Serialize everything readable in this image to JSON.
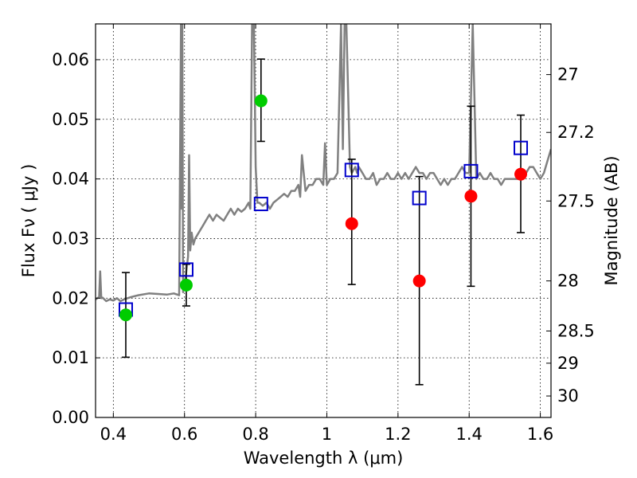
{
  "chart_data": {
    "type": "scatter",
    "xlabel": "Wavelength  λ (μm)",
    "ylabel": "Flux  Fν  ( μJy )",
    "y2label": "Magnitude (AB)",
    "xlim": [
      0.35,
      1.63
    ],
    "ylim": [
      0.0,
      0.066
    ],
    "grid": true,
    "x_ticks": [
      0.4,
      0.6,
      0.8,
      1.0,
      1.2,
      1.4,
      1.6
    ],
    "x_tick_labels": [
      "0.4",
      "0.6",
      "0.8",
      "1",
      "1.2",
      "1.4",
      "1.6"
    ],
    "y_ticks": [
      0.0,
      0.01,
      0.02,
      0.03,
      0.04,
      0.05,
      0.06
    ],
    "y_tick_labels": [
      "0.00",
      "0.01",
      "0.02",
      "0.03",
      "0.04",
      "0.05",
      "0.06"
    ],
    "y2_ticks": [
      {
        "label": "27",
        "flux": 0.0575
      },
      {
        "label": "27.2",
        "flux": 0.0478
      },
      {
        "label": "27.5",
        "flux": 0.0363
      },
      {
        "label": "28",
        "flux": 0.0229
      },
      {
        "label": "28.5",
        "flux": 0.0145
      },
      {
        "label": "29",
        "flux": 0.0091
      },
      {
        "label": "30",
        "flux": 0.0036
      }
    ],
    "model_spectrum": {
      "color": "#808080",
      "x": [
        0.35,
        0.36,
        0.363,
        0.366,
        0.37,
        0.38,
        0.39,
        0.4,
        0.41,
        0.42,
        0.43,
        0.45,
        0.47,
        0.5,
        0.53,
        0.55,
        0.57,
        0.585,
        0.59,
        0.592,
        0.594,
        0.596,
        0.6,
        0.605,
        0.61,
        0.613,
        0.616,
        0.62,
        0.625,
        0.63,
        0.64,
        0.65,
        0.66,
        0.67,
        0.68,
        0.69,
        0.7,
        0.71,
        0.72,
        0.73,
        0.74,
        0.75,
        0.76,
        0.77,
        0.78,
        0.785,
        0.79,
        0.795,
        0.8,
        0.805,
        0.81,
        0.82,
        0.83,
        0.84,
        0.85,
        0.86,
        0.87,
        0.88,
        0.89,
        0.9,
        0.91,
        0.92,
        0.925,
        0.93,
        0.94,
        0.95,
        0.96,
        0.97,
        0.98,
        0.99,
        0.995,
        1.0,
        1.01,
        1.02,
        1.03,
        1.04,
        1.045,
        1.05,
        1.055,
        1.06,
        1.065,
        1.07,
        1.08,
        1.085,
        1.09,
        1.1,
        1.11,
        1.12,
        1.13,
        1.14,
        1.15,
        1.16,
        1.17,
        1.18,
        1.19,
        1.2,
        1.21,
        1.22,
        1.23,
        1.24,
        1.25,
        1.26,
        1.27,
        1.28,
        1.29,
        1.3,
        1.31,
        1.32,
        1.33,
        1.34,
        1.35,
        1.36,
        1.37,
        1.38,
        1.39,
        1.4,
        1.41,
        1.42,
        1.43,
        1.44,
        1.45,
        1.46,
        1.47,
        1.48,
        1.49,
        1.5,
        1.51,
        1.52,
        1.53,
        1.54,
        1.55,
        1.56,
        1.57,
        1.58,
        1.59,
        1.6,
        1.61,
        1.62,
        1.63
      ],
      "y": [
        0.0198,
        0.0202,
        0.0245,
        0.02,
        0.0201,
        0.0195,
        0.0198,
        0.0196,
        0.02,
        0.0195,
        0.0198,
        0.0202,
        0.0205,
        0.0208,
        0.0207,
        0.0206,
        0.0208,
        0.0205,
        0.066,
        0.035,
        0.066,
        0.021,
        0.022,
        0.0245,
        0.027,
        0.044,
        0.028,
        0.031,
        0.029,
        0.03,
        0.031,
        0.032,
        0.033,
        0.034,
        0.033,
        0.034,
        0.0335,
        0.033,
        0.034,
        0.035,
        0.034,
        0.035,
        0.0345,
        0.035,
        0.036,
        0.035,
        0.066,
        0.066,
        0.042,
        0.036,
        0.036,
        0.0355,
        0.036,
        0.035,
        0.036,
        0.0365,
        0.037,
        0.0375,
        0.037,
        0.038,
        0.038,
        0.039,
        0.037,
        0.044,
        0.038,
        0.039,
        0.039,
        0.04,
        0.04,
        0.039,
        0.046,
        0.039,
        0.04,
        0.04,
        0.041,
        0.066,
        0.045,
        0.066,
        0.066,
        0.054,
        0.042,
        0.041,
        0.042,
        0.041,
        0.042,
        0.041,
        0.04,
        0.04,
        0.041,
        0.039,
        0.04,
        0.04,
        0.041,
        0.04,
        0.04,
        0.041,
        0.04,
        0.041,
        0.04,
        0.041,
        0.042,
        0.041,
        0.041,
        0.04,
        0.041,
        0.041,
        0.04,
        0.039,
        0.04,
        0.039,
        0.04,
        0.04,
        0.041,
        0.042,
        0.041,
        0.041,
        0.066,
        0.04,
        0.041,
        0.04,
        0.04,
        0.041,
        0.04,
        0.04,
        0.039,
        0.04,
        0.04,
        0.04,
        0.04,
        0.04,
        0.041,
        0.041,
        0.042,
        0.042,
        0.041,
        0.04,
        0.041,
        0.043,
        0.045
      ]
    },
    "model_photometry": {
      "marker": "open-square",
      "color": "#0000cc",
      "x": [
        0.435,
        0.605,
        0.815,
        1.07,
        1.26,
        1.405,
        1.545
      ],
      "y": [
        0.0181,
        0.0248,
        0.0358,
        0.0415,
        0.0368,
        0.0413,
        0.0452
      ]
    },
    "detections": {
      "marker": "filled-circle",
      "color": "#00cc00",
      "x": [
        0.435,
        0.605,
        0.815
      ],
      "y": [
        0.0172,
        0.0222,
        0.0531
      ],
      "err_low": [
        0.0101,
        0.0187,
        0.0463
      ],
      "err_high": [
        0.0243,
        0.0257,
        0.0601
      ]
    },
    "measurements": {
      "marker": "filled-circle",
      "color": "#ff0000",
      "x": [
        1.07,
        1.26,
        1.405,
        1.545
      ],
      "y": [
        0.0325,
        0.0229,
        0.0371,
        0.0408
      ],
      "err_low": [
        0.0223,
        0.0055,
        0.022,
        0.031
      ],
      "err_high": [
        0.0433,
        0.0404,
        0.0522,
        0.0507
      ]
    }
  }
}
